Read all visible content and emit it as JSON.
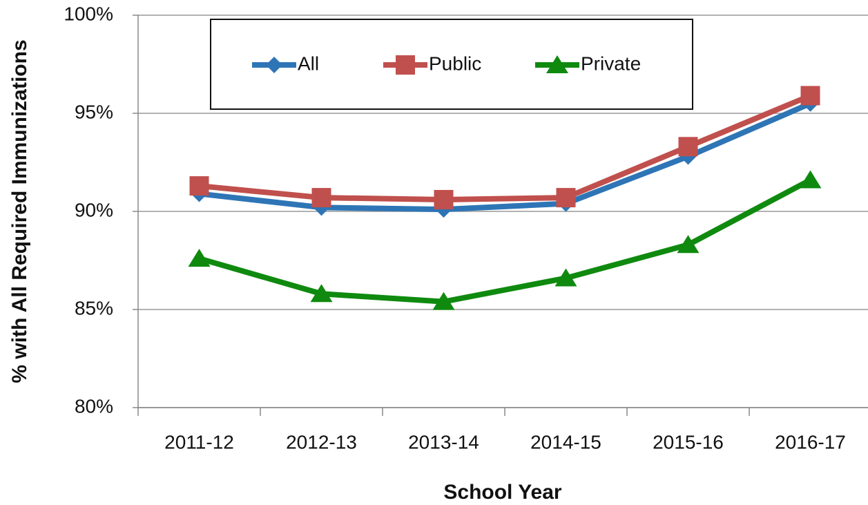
{
  "chart_data": {
    "type": "line",
    "x_label": "School Year",
    "y_label": "% with All Required  Immunizations",
    "categories": [
      "2011-12",
      "2012-13",
      "2013-14",
      "2014-15",
      "2015-16",
      "2016-17"
    ],
    "series": [
      {
        "name": "All",
        "color": "#2e75b6",
        "marker": "diamond",
        "values": [
          90.9,
          90.2,
          90.1,
          90.4,
          92.8,
          95.5
        ]
      },
      {
        "name": "Public",
        "color": "#c0504d",
        "marker": "square",
        "values": [
          91.3,
          90.7,
          90.6,
          90.7,
          93.3,
          95.9
        ]
      },
      {
        "name": "Private",
        "color": "#0f8a0f",
        "marker": "triangle",
        "values": [
          87.6,
          85.8,
          85.4,
          86.6,
          88.3,
          91.6
        ]
      }
    ],
    "ylim": [
      80,
      100
    ],
    "yticks": [
      {
        "value": 80,
        "label": "80%"
      },
      {
        "value": 85,
        "label": "85%"
      },
      {
        "value": 90,
        "label": "90%"
      },
      {
        "value": 95,
        "label": "95%"
      },
      {
        "value": 100,
        "label": "100%"
      }
    ],
    "grid": true,
    "legend_position": "top"
  }
}
